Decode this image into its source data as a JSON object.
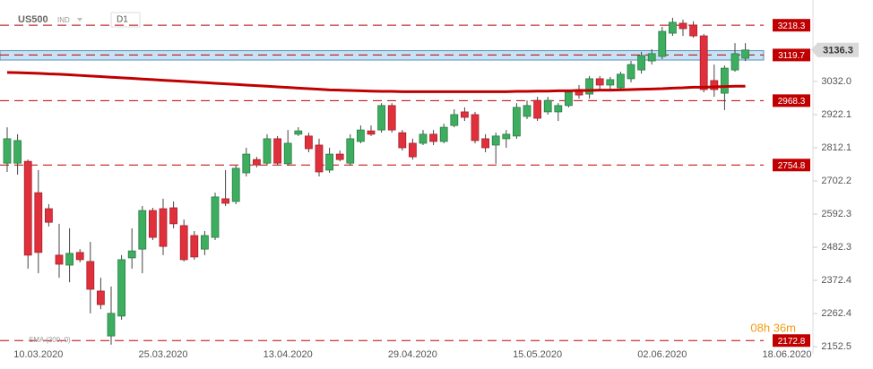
{
  "chart_data": {
    "type": "candlestick",
    "title": "US500",
    "instrument_type": "IND",
    "timeframe": "D1",
    "timer": "08h 36m",
    "categories": [
      null,
      null,
      null,
      "10.03.2020",
      null,
      null,
      null,
      null,
      null,
      null,
      null,
      null,
      null,
      null,
      null,
      "25.03.2020",
      null,
      null,
      null,
      null,
      null,
      null,
      null,
      null,
      null,
      null,
      null,
      "13.04.2020",
      null,
      null,
      null,
      null,
      null,
      null,
      null,
      null,
      null,
      null,
      null,
      "29.04.2020",
      null,
      null,
      null,
      null,
      null,
      null,
      null,
      null,
      null,
      null,
      null,
      "15.05.2020",
      null,
      null,
      null,
      null,
      null,
      null,
      null,
      null,
      null,
      null,
      null,
      "02.06.2020",
      null,
      null,
      null,
      null,
      null,
      null,
      null,
      null,
      null,
      null,
      null,
      "18.06.2020"
    ],
    "series": [
      {
        "name": "US500",
        "up_color": "#3dae5f",
        "down_color": "#e0303c",
        "open": [
          2761,
          2761,
          2767,
          2663,
          2610,
          2456,
          2423,
          2465,
          2435,
          2337,
          2188,
          2254,
          2447,
          2476,
          2604,
          2610,
          2613,
          2554,
          2521,
          2476,
          2515,
          2643,
          2634,
          2729,
          2773,
          2761,
          2842,
          2759,
          2857,
          2851,
          2821,
          2738,
          2791,
          2761,
          2833,
          2868,
          2871,
          2952,
          2862,
          2827,
          2827,
          2857,
          2833,
          2886,
          2931,
          2922,
          2842,
          2821,
          2842,
          2851,
          2916,
          2969,
          2931,
          2931,
          2952,
          3005,
          2990,
          3041,
          3020,
          3011,
          3041,
          3070,
          3100,
          3115,
          3192,
          3225,
          3219,
          3183,
          3035,
          2993,
          3070,
          3109,
          null,
          null,
          null,
          null
        ],
        "high": [
          2880,
          2857,
          2773,
          2738,
          2625,
          2560,
          2545,
          2476,
          2500,
          2381,
          2352,
          2456,
          2545,
          2619,
          2613,
          2643,
          2634,
          2574,
          2536,
          2536,
          2663,
          2738,
          2753,
          2812,
          2782,
          2857,
          2851,
          2871,
          2880,
          2862,
          2842,
          2812,
          2803,
          2857,
          2886,
          2886,
          2960,
          2960,
          2871,
          2842,
          2871,
          2871,
          2892,
          2940,
          2946,
          2931,
          2857,
          2862,
          2871,
          2960,
          2969,
          2981,
          2981,
          2960,
          3005,
          3020,
          3050,
          3050,
          3047,
          3064,
          3100,
          3130,
          3139,
          3213,
          3243,
          3237,
          3231,
          3189,
          3088,
          3085,
          3159,
          3159,
          null,
          null,
          null,
          null
        ],
        "low": [
          2732,
          2723,
          2411,
          2396,
          2551,
          2381,
          2366,
          2432,
          2263,
          2277,
          2159,
          2242,
          2411,
          2396,
          2506,
          2456,
          2545,
          2435,
          2441,
          2456,
          2506,
          2619,
          2625,
          2717,
          2747,
          2753,
          2753,
          2753,
          2851,
          2797,
          2717,
          2729,
          2767,
          2753,
          2827,
          2851,
          2862,
          2862,
          2803,
          2773,
          2821,
          2821,
          2827,
          2880,
          2901,
          2827,
          2797,
          2759,
          2812,
          2842,
          2907,
          2901,
          2922,
          2901,
          2946,
          2975,
          2975,
          3005,
          3005,
          3005,
          3029,
          3058,
          3088,
          3106,
          3183,
          3183,
          3177,
          2996,
          2981,
          2937,
          3064,
          3100,
          null,
          null,
          null,
          null
        ],
        "close": [
          2842,
          2836,
          2456,
          2465,
          2565,
          2426,
          2462,
          2441,
          2343,
          2292,
          2263,
          2441,
          2470,
          2604,
          2515,
          2485,
          2560,
          2441,
          2450,
          2521,
          2649,
          2628,
          2744,
          2791,
          2755,
          2842,
          2761,
          2827,
          2868,
          2809,
          2732,
          2791,
          2773,
          2842,
          2871,
          2857,
          2952,
          2871,
          2812,
          2782,
          2857,
          2833,
          2880,
          2922,
          2913,
          2836,
          2812,
          2851,
          2857,
          2946,
          2952,
          2910,
          2969,
          2952,
          2996,
          2987,
          3041,
          3020,
          3038,
          3056,
          3088,
          3118,
          3124,
          3198,
          3228,
          3207,
          3183,
          3005,
          3005,
          3076,
          3124,
          3136.3,
          null,
          null,
          null,
          null
        ]
      },
      {
        "name": "SMA (200, 0)",
        "color": "#c00000",
        "values": [
          3062,
          3061,
          3060,
          3059,
          3057,
          3056,
          3054,
          3052,
          3050,
          3048,
          3046,
          3044,
          3042,
          3040,
          3038,
          3036,
          3034,
          3032,
          3030,
          3028,
          3026,
          3024,
          3022,
          3020,
          3018,
          3016,
          3014,
          3012,
          3010,
          3008,
          3006,
          3004,
          3003,
          3002,
          3001,
          3000,
          2999,
          2999,
          2998,
          2998,
          2998,
          2998,
          2998,
          2998,
          2998,
          2998,
          2998,
          2998,
          2998,
          2999,
          2999,
          3000,
          3000,
          3001,
          3001,
          3002,
          3002,
          3003,
          3003,
          3004,
          3005,
          3006,
          3007,
          3008,
          3010,
          3011,
          3013,
          3013,
          3014,
          3015,
          3016,
          3016,
          null,
          null,
          null,
          null
        ]
      }
    ],
    "levels": [
      3218.3,
      3119.7,
      2968.3,
      2754.8,
      2172.8
    ],
    "level_color": "#c00000",
    "zone": [
      3103,
      3134
    ],
    "zone_color": "#aed6f1",
    "ylim": [
      2129,
      3302
    ],
    "yticks": [
      {
        "value": 2152.5,
        "label": "2152.5"
      },
      {
        "value": 2262.4,
        "label": "2262.4"
      },
      {
        "value": 2372.4,
        "label": "2372.4"
      },
      {
        "value": 2482.3,
        "label": "2482.3"
      },
      {
        "value": 2592.3,
        "label": "2592.3"
      },
      {
        "value": 2702.2,
        "label": "2702.2"
      },
      {
        "value": 2812.1,
        "label": "2812.1"
      },
      {
        "value": 2922.1,
        "label": "2922.1"
      },
      {
        "value": 3032,
        "label": "3032.0"
      }
    ]
  }
}
